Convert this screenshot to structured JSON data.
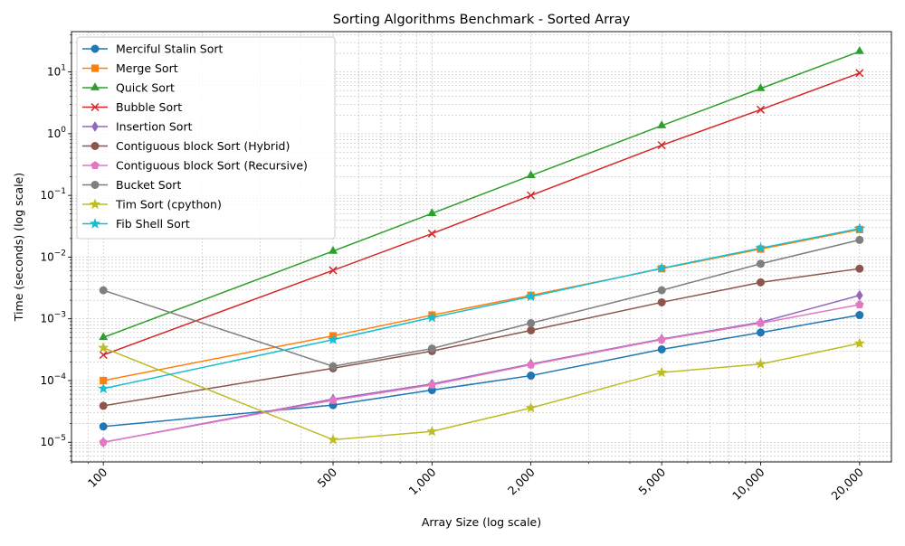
{
  "chart_data": {
    "type": "line",
    "title": "Sorting Algorithms Benchmark - Sorted Array",
    "xlabel": "Array Size (log scale)",
    "ylabel": "Time (seconds) (log scale)",
    "x_scale": "log",
    "y_scale": "log",
    "x": [
      100,
      500,
      1000,
      2000,
      5000,
      10000,
      20000
    ],
    "x_tick_labels": [
      "100",
      "500",
      "1,000",
      "2,000",
      "5,000",
      "10,000",
      "20,000"
    ],
    "xlim": [
      80,
      25000
    ],
    "ylim": [
      4.8e-06,
      45
    ],
    "y_ticks": [
      {
        "mantissa": "10",
        "exponent": "−5",
        "value": 1e-05
      },
      {
        "mantissa": "10",
        "exponent": "−4",
        "value": 0.0001
      },
      {
        "mantissa": "10",
        "exponent": "−3",
        "value": 0.001
      },
      {
        "mantissa": "10",
        "exponent": "−2",
        "value": 0.01
      },
      {
        "mantissa": "10",
        "exponent": "−1",
        "value": 0.1
      },
      {
        "mantissa": "10",
        "exponent": "0",
        "value": 1
      },
      {
        "mantissa": "10",
        "exponent": "1",
        "value": 10
      }
    ],
    "grid": true,
    "legend_position": "top-left",
    "series": [
      {
        "name": "Merciful Stalin Sort",
        "color": "#1f77b4",
        "marker": "circle",
        "values": [
          1.8e-05,
          4e-05,
          7e-05,
          0.00012,
          0.00032,
          0.0006,
          0.00115
        ]
      },
      {
        "name": "Merge Sort",
        "color": "#ff7f0e",
        "marker": "square",
        "values": [
          0.0001,
          0.00053,
          0.00115,
          0.0024,
          0.0065,
          0.0135,
          0.028
        ]
      },
      {
        "name": "Quick Sort",
        "color": "#2ca02c",
        "marker": "triangle",
        "values": [
          0.0005,
          0.0125,
          0.051,
          0.21,
          1.35,
          5.4,
          21.5
        ]
      },
      {
        "name": "Bubble Sort",
        "color": "#d62728",
        "marker": "x",
        "values": [
          0.00026,
          0.0061,
          0.024,
          0.1,
          0.65,
          2.45,
          9.6
        ]
      },
      {
        "name": "Insertion Sort",
        "color": "#9467bd",
        "marker": "thin_diamond",
        "values": [
          1e-05,
          5e-05,
          8.8e-05,
          0.000185,
          0.00047,
          0.00088,
          0.0024
        ]
      },
      {
        "name": "Contiguous block Sort (Hybrid)",
        "color": "#8c564b",
        "marker": "circle",
        "values": [
          3.9e-05,
          0.000158,
          0.0003,
          0.00065,
          0.00185,
          0.0039,
          0.0065
        ]
      },
      {
        "name": "Contiguous block Sort (Recursive)",
        "color": "#e377c2",
        "marker": "pentagon",
        "values": [
          1e-05,
          4.8e-05,
          8.5e-05,
          0.00018,
          0.00046,
          0.00085,
          0.0017
        ]
      },
      {
        "name": "Bucket Sort",
        "color": "#7f7f7f",
        "marker": "circle",
        "values": [
          0.0029,
          0.00017,
          0.00033,
          0.00085,
          0.0029,
          0.0078,
          0.019
        ]
      },
      {
        "name": "Tim Sort (cpython)",
        "color": "#bcbd22",
        "marker": "star",
        "values": [
          0.00034,
          1.1e-05,
          1.5e-05,
          3.6e-05,
          0.000135,
          0.000185,
          0.0004
        ]
      },
      {
        "name": "Fib Shell Sort",
        "color": "#17becf",
        "marker": "star",
        "values": [
          7.4e-05,
          0.00046,
          0.00105,
          0.0023,
          0.0066,
          0.014,
          0.029
        ]
      }
    ]
  }
}
